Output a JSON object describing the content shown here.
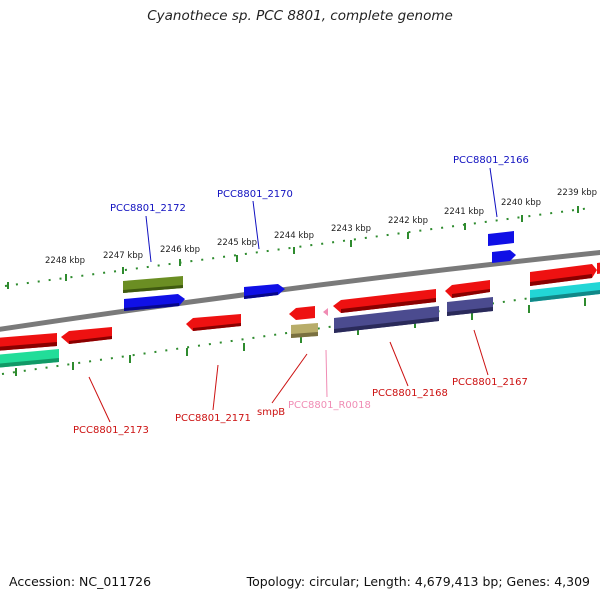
{
  "title": "Cyanothece sp. PCC 8801, complete genome",
  "footer": {
    "accession": "Accession: NC_011726",
    "stats": "Topology: circular; Length: 4,679,413 bp; Genes: 4,309"
  },
  "colors": {
    "backbone": "#7a7a7a",
    "tick": "#2e8b2e",
    "label_plus": "#1010c0",
    "label_minus": "#cc1111",
    "label_rna": "#f08cb4"
  },
  "scale_labels": [
    "2248 kbp",
    "2247 kbp",
    "2246 kbp",
    "2245 kbp",
    "2244 kbp",
    "2243 kbp",
    "2242 kbp",
    "2241 kbp",
    "2240 kbp",
    "2239 kbp"
  ],
  "genes": [
    {
      "locus": "PCC8801_2172",
      "strand": "plus"
    },
    {
      "locus": "PCC8801_2170",
      "strand": "plus"
    },
    {
      "locus": "PCC8801_2166",
      "strand": "plus"
    },
    {
      "locus": "PCC8801_2173",
      "strand": "minus"
    },
    {
      "locus": "PCC8801_2171",
      "strand": "minus"
    },
    {
      "locus": "smpB",
      "strand": "minus"
    },
    {
      "locus": "PCC8801_R0018",
      "strand": "rna"
    },
    {
      "locus": "PCC8801_2168",
      "strand": "minus"
    },
    {
      "locus": "PCC8801_2167",
      "strand": "minus"
    }
  ]
}
